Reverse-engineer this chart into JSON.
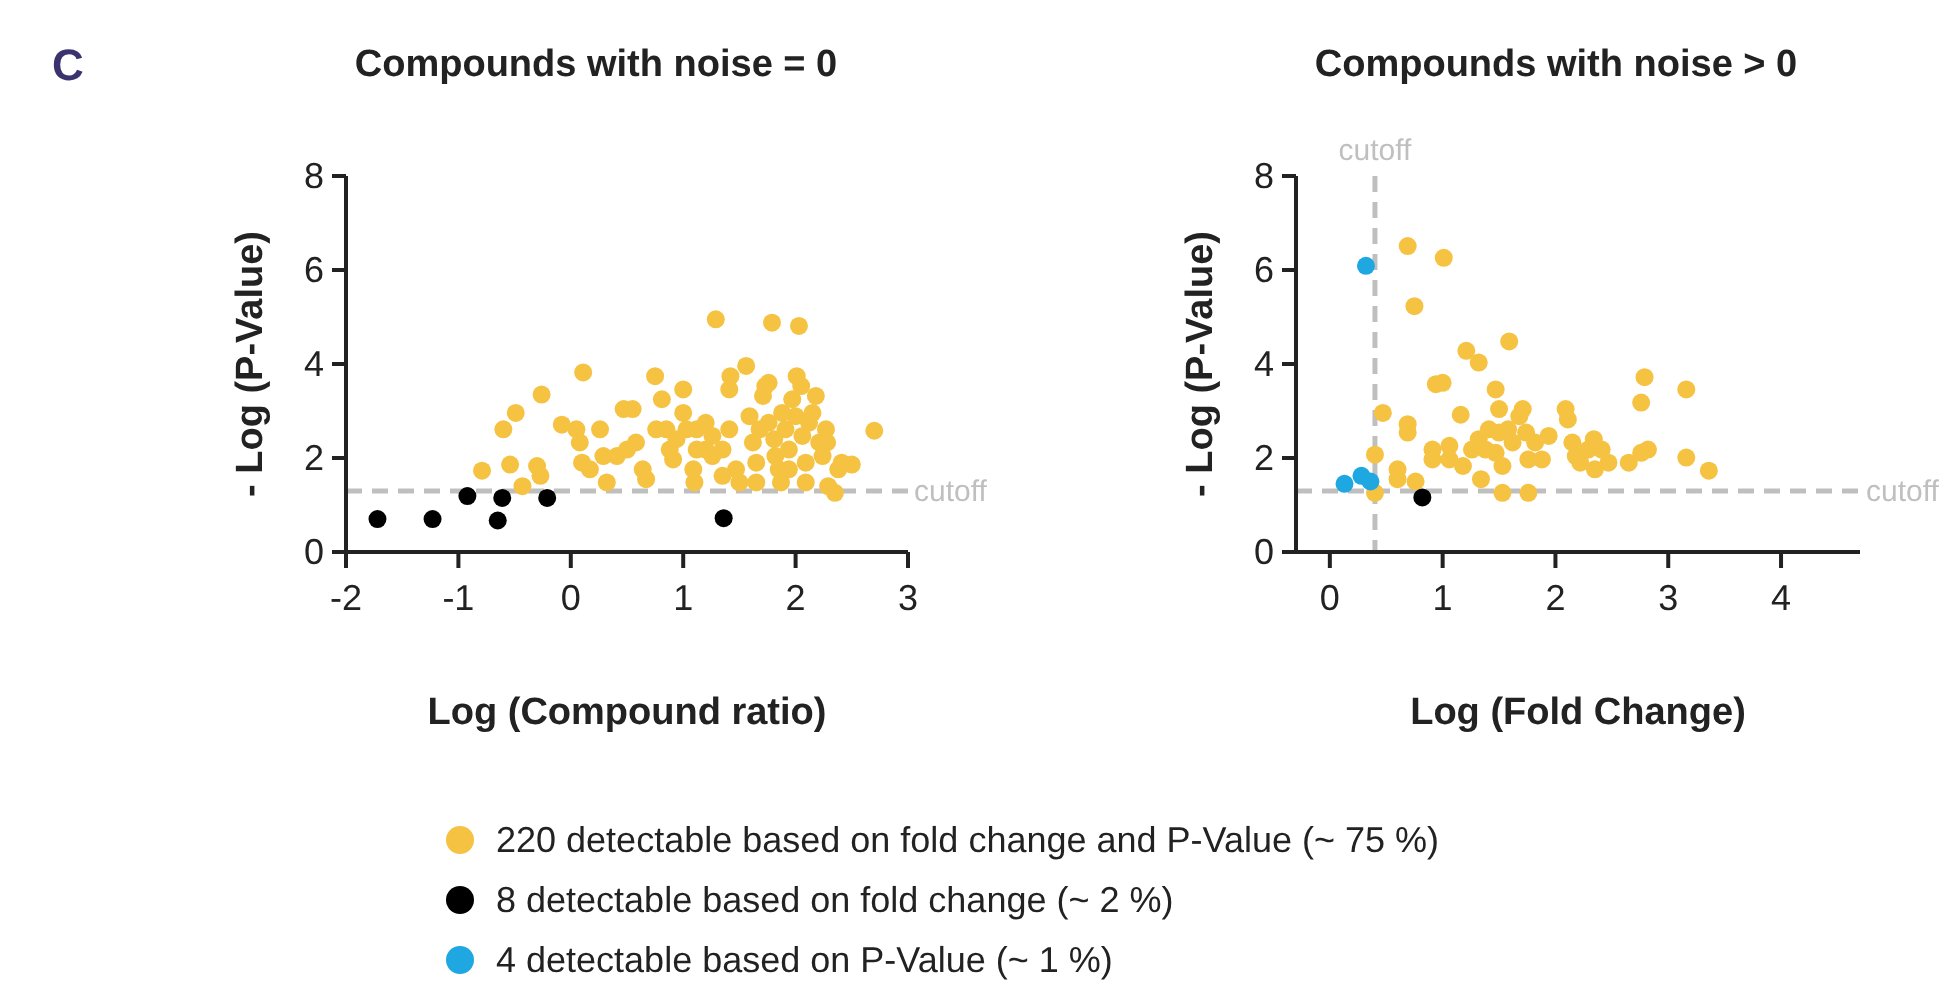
{
  "chart_data": [
    {
      "type": "scatter",
      "title": "Compounds with noise = 0",
      "xlabel": "Log (Compound ratio)",
      "ylabel": "- Log (P-Value)",
      "annotations": [
        "C"
      ],
      "xlim": [
        -2,
        3
      ],
      "xticks": [
        -2,
        -1,
        0,
        1,
        2,
        3
      ],
      "ylim": [
        0,
        8
      ],
      "yticks": [
        0,
        2,
        4,
        6,
        8
      ],
      "marker": "circle",
      "legend": false,
      "grid": false,
      "ref_lines": [
        {
          "axis": "y",
          "value": 1.3,
          "label": "cutoff",
          "color": "#bfbfbf",
          "line_style": "dashed"
        }
      ],
      "series": [
        {
          "color": "#f5c242",
          "x": [
            -0.79,
            -0.49,
            -0.6,
            -0.54,
            -0.43,
            -0.26,
            -0.3,
            -0.27,
            -0.08,
            0.11,
            0.05,
            0.08,
            0.1,
            0.26,
            0.29,
            0.32,
            0.47,
            0.55,
            0.5,
            0.58,
            0.64,
            0.67,
            0.75,
            0.76,
            0.81,
            0.85,
            0.88,
            0.91,
            1.0,
            0.94,
            1.03,
            1.09,
            1.1,
            1.12,
            1.2,
            1.26,
            1.29,
            1.26,
            1.35,
            1.41,
            1.41,
            1.42,
            1.47,
            1.5,
            1.56,
            1.59,
            1.62,
            1.65,
            1.68,
            1.71,
            1.73,
            1.76,
            1.79,
            1.76,
            1.81,
            1.82,
            1.85,
            1.87,
            1.88,
            1.91,
            1.94,
            1.97,
            2.0,
            2.01,
            2.03,
            2.05,
            2.06,
            2.09,
            2.09,
            2.12,
            2.15,
            2.18,
            2.21,
            2.24,
            2.27,
            2.28,
            2.29,
            2.35,
            2.38,
            2.41,
            2.5,
            2.7,
            1.0,
            1.2,
            1.35,
            1.12,
            1.65,
            1.94,
            0.41,
            0.17
          ],
          "values": [
            1.73,
            2.96,
            2.61,
            1.86,
            1.4,
            3.35,
            1.83,
            1.62,
            2.71,
            3.82,
            2.61,
            2.33,
            1.9,
            2.61,
            2.04,
            1.48,
            3.04,
            3.04,
            2.18,
            2.33,
            1.76,
            1.55,
            3.74,
            2.61,
            3.25,
            2.61,
            2.18,
            1.97,
            3.46,
            2.4,
            2.61,
            1.76,
            1.48,
            2.61,
            2.75,
            2.47,
            4.95,
            2.04,
            2.18,
            2.61,
            3.46,
            3.74,
            1.76,
            1.48,
            3.96,
            2.89,
            2.33,
            1.9,
            2.61,
            3.32,
            3.53,
            3.6,
            4.88,
            2.75,
            2.4,
            2.04,
            1.76,
            1.48,
            2.96,
            2.61,
            2.18,
            3.25,
            2.89,
            3.74,
            4.81,
            3.53,
            2.47,
            1.9,
            1.48,
            2.75,
            2.96,
            3.32,
            2.33,
            2.04,
            2.61,
            2.33,
            1.4,
            1.26,
            1.76,
            1.9,
            1.86,
            2.58,
            2.96,
            2.18,
            1.62,
            2.18,
            1.48,
            1.76,
            2.04,
            1.76
          ]
        },
        {
          "color": "#000000",
          "x": [
            -1.72,
            -1.23,
            -0.92,
            -0.61,
            -0.65,
            -0.21,
            1.36
          ],
          "values": [
            0.7,
            0.7,
            1.19,
            1.15,
            0.67,
            1.15,
            0.72
          ]
        }
      ]
    },
    {
      "type": "scatter",
      "title": "Compounds with noise > 0",
      "xlabel": "Log (Fold Change)",
      "ylabel": "- Log (P-Value)",
      "xlim": [
        -0.3,
        4.7
      ],
      "xticks": [
        0,
        1,
        2,
        3,
        4
      ],
      "ylim": [
        0,
        8
      ],
      "yticks": [
        0,
        2,
        4,
        6,
        8
      ],
      "marker": "circle",
      "legend": "bottom",
      "grid": false,
      "ref_lines": [
        {
          "axis": "y",
          "value": 1.3,
          "label": "cutoff",
          "color": "#bfbfbf",
          "line_style": "dashed"
        },
        {
          "axis": "x",
          "value": 0.4,
          "label": "cutoff",
          "color": "#bfbfbf",
          "line_style": "dashed"
        }
      ],
      "series": [
        {
          "name": "220 detectable based on fold change and P-Value (~ 75 %)",
          "color": "#f5c242",
          "x": [
            0.69,
            1.01,
            0.75,
            0.47,
            0.4,
            0.4,
            0.6,
            0.6,
            0.76,
            0.69,
            0.69,
            0.94,
            1.0,
            0.91,
            0.91,
            1.06,
            1.06,
            1.16,
            1.18,
            1.21,
            1.32,
            1.34,
            1.26,
            1.32,
            1.38,
            1.41,
            1.47,
            1.5,
            1.5,
            1.53,
            1.53,
            1.59,
            1.58,
            1.62,
            1.68,
            1.71,
            1.74,
            1.76,
            1.76,
            1.82,
            1.88,
            2.09,
            2.11,
            2.15,
            2.18,
            2.22,
            2.34,
            2.35,
            2.41,
            2.47,
            2.65,
            2.76,
            2.82,
            2.76,
            2.79,
            3.16,
            3.16,
            3.36,
            1.47,
            1.94,
            2.29
          ],
          "values": [
            6.51,
            6.26,
            5.23,
            2.96,
            2.07,
            1.26,
            1.76,
            1.55,
            1.5,
            2.72,
            2.54,
            3.57,
            3.6,
            2.18,
            1.97,
            2.26,
            1.97,
            2.92,
            1.83,
            4.28,
            4.03,
            1.55,
            2.18,
            2.4,
            2.18,
            2.61,
            3.46,
            3.04,
            2.54,
            1.26,
            1.83,
            4.48,
            2.61,
            2.33,
            2.89,
            3.04,
            2.54,
            1.26,
            1.97,
            2.33,
            1.97,
            3.04,
            2.82,
            2.33,
            2.04,
            1.9,
            2.4,
            1.76,
            2.18,
            1.9,
            1.9,
            2.11,
            2.18,
            3.18,
            3.72,
            3.46,
            2.01,
            1.73,
            2.11,
            2.47,
            2.18
          ]
        },
        {
          "name": "8 detectable based on fold change (~ 2 %)",
          "color": "#000000",
          "x": [
            0.82
          ],
          "values": [
            1.16
          ]
        },
        {
          "name": "4 detectable based on P-Value (~ 1 %)",
          "color": "#1ea7e1",
          "x": [
            0.13,
            0.28,
            0.36,
            0.32
          ],
          "values": [
            1.45,
            1.62,
            1.5,
            6.09
          ]
        }
      ]
    }
  ]
}
